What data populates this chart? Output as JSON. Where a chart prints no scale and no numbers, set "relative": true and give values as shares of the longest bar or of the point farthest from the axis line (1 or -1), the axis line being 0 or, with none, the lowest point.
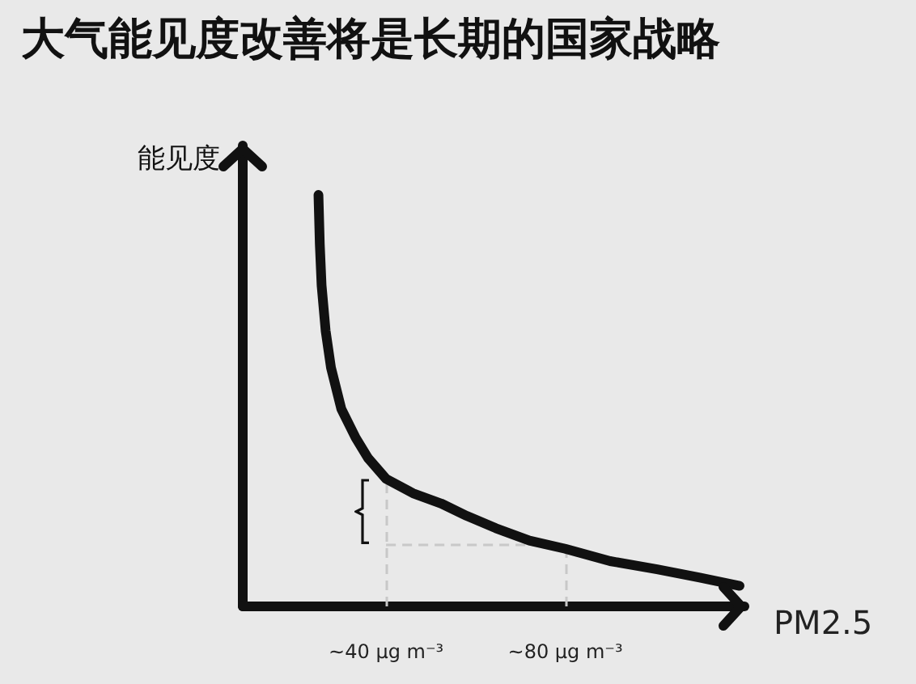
{
  "chart_data": {
    "type": "line",
    "title": "大气能见度改善将是长期的国家战略",
    "xlabel": "PM2.5",
    "ylabel": "能见度",
    "relative": true,
    "x": [
      24.9,
      25.2,
      25.6,
      26.5,
      27.7,
      30,
      33.2,
      36,
      40,
      46,
      52.3,
      58,
      64.5,
      72,
      80,
      90,
      100.5,
      110,
      118.9
    ],
    "series": [
      {
        "color": "#111111",
        "values": [
          1.0,
          0.88,
          0.78,
          0.67,
          0.58,
          0.48,
          0.41,
          0.36,
          0.31,
          0.275,
          0.25,
          0.22,
          0.19,
          0.16,
          0.14,
          0.11,
          0.09,
          0.07,
          0.05
        ]
      }
    ],
    "xlim": [
      8,
      120
    ],
    "xticks": [
      {
        "value": 40,
        "label": "~40 μg m⁻³"
      },
      {
        "value": 80,
        "label": "~80 μg m⁻³"
      }
    ],
    "ref_lines": [
      {
        "axis": "x",
        "value": 40,
        "color": "#c8c8c8",
        "line_style": "dashed"
      },
      {
        "axis": "x",
        "value": 80,
        "color": "#c8c8c8",
        "line_style": "dashed"
      },
      {
        "axis": "y",
        "value": 0.15,
        "color": "#c8c8c8",
        "line_style": "dashed"
      }
    ],
    "grid": false,
    "marker": "none",
    "line_style": "solid"
  }
}
